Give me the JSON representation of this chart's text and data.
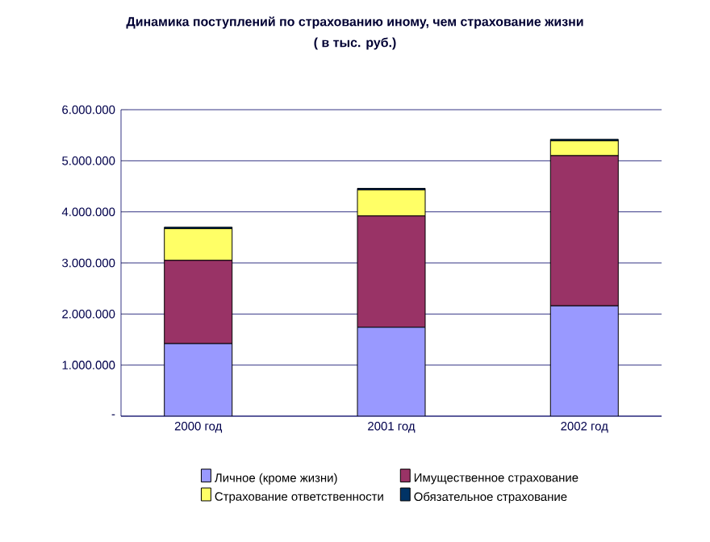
{
  "chart_data": {
    "type": "bar",
    "title": "Динамика поступлений по страхованию иному, чем страхование жизни",
    "subtitle": "( в тыс. руб.)",
    "categories": [
      "2000 год",
      "2001 год",
      "2002 год"
    ],
    "stacked": true,
    "series": [
      {
        "name": "Личное (кроме жизни)",
        "color": "#9999ff",
        "values": [
          1420000,
          1740000,
          2160000
        ]
      },
      {
        "name": "Имущественное страхование",
        "color": "#993366",
        "values": [
          1630000,
          2180000,
          2940000
        ]
      },
      {
        "name": "Страхование ответственности",
        "color": "#ffff66",
        "values": [
          620000,
          510000,
          290000
        ]
      },
      {
        "name": "Обязательное страхование",
        "color": "#003366",
        "values": [
          30000,
          30000,
          30000
        ]
      }
    ],
    "ylim": [
      0,
      6000000
    ],
    "yticks": [
      {
        "value": 0,
        "label": "-"
      },
      {
        "value": 1000000,
        "label": "1.000.000"
      },
      {
        "value": 2000000,
        "label": "2.000.000"
      },
      {
        "value": 3000000,
        "label": "3.000.000"
      },
      {
        "value": 4000000,
        "label": "4.000.000"
      },
      {
        "value": 5000000,
        "label": "5.000.000"
      },
      {
        "value": 6000000,
        "label": "6.000.000"
      }
    ],
    "grid": "y",
    "legend": "bottom"
  }
}
